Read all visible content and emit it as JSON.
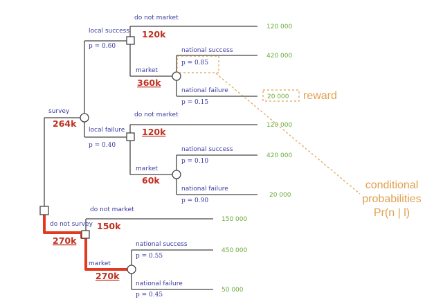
{
  "labels": {
    "survey": "survey",
    "do_not_survey": "do not survey",
    "local_success": "local success",
    "local_failure": "local failure",
    "do_not_market": "do not market",
    "market": "market",
    "national_success": "national success",
    "national_failure": "national failure"
  },
  "probabilities": {
    "p_local_success": "p = 0.60",
    "p_local_failure": "p = 0.40",
    "p_ns_given_ls": "p = 0.85",
    "p_nf_given_ls": "p = 0.15",
    "p_ns_given_lf": "p = 0.10",
    "p_nf_given_lf": "p = 0.90",
    "p_ns_no_survey": "p = 0.55",
    "p_nf_no_survey": "p = 0.45"
  },
  "values": {
    "survey": "264k",
    "ls_do_not_market": "120k",
    "ls_market": "360k",
    "lf_do_not_market": "120k",
    "lf_market": "60k",
    "ns_do_not_market": "150k",
    "do_not_survey": "270k",
    "ns_market": "270k"
  },
  "payoffs": {
    "ls_dnm": "120 000",
    "ls_m_ns": "420 000",
    "ls_m_nf": "20 000",
    "lf_dnm": "120 000",
    "lf_m_ns": "420 000",
    "lf_m_nf": "20 000",
    "ns_dnm": "150 000",
    "ns_m_ns": "450 000",
    "ns_m_nf": "50 000"
  },
  "annotations": {
    "reward": "reward",
    "cond_line1": "conditional",
    "cond_line2": "probabilities",
    "cond_line3": "Pr(n | l)"
  },
  "colors": {
    "label": "#3a3aa0",
    "value": "#c03020",
    "payoff": "#6aaa3a",
    "annotation": "#e0a050",
    "highlight": "#e03a20"
  }
}
